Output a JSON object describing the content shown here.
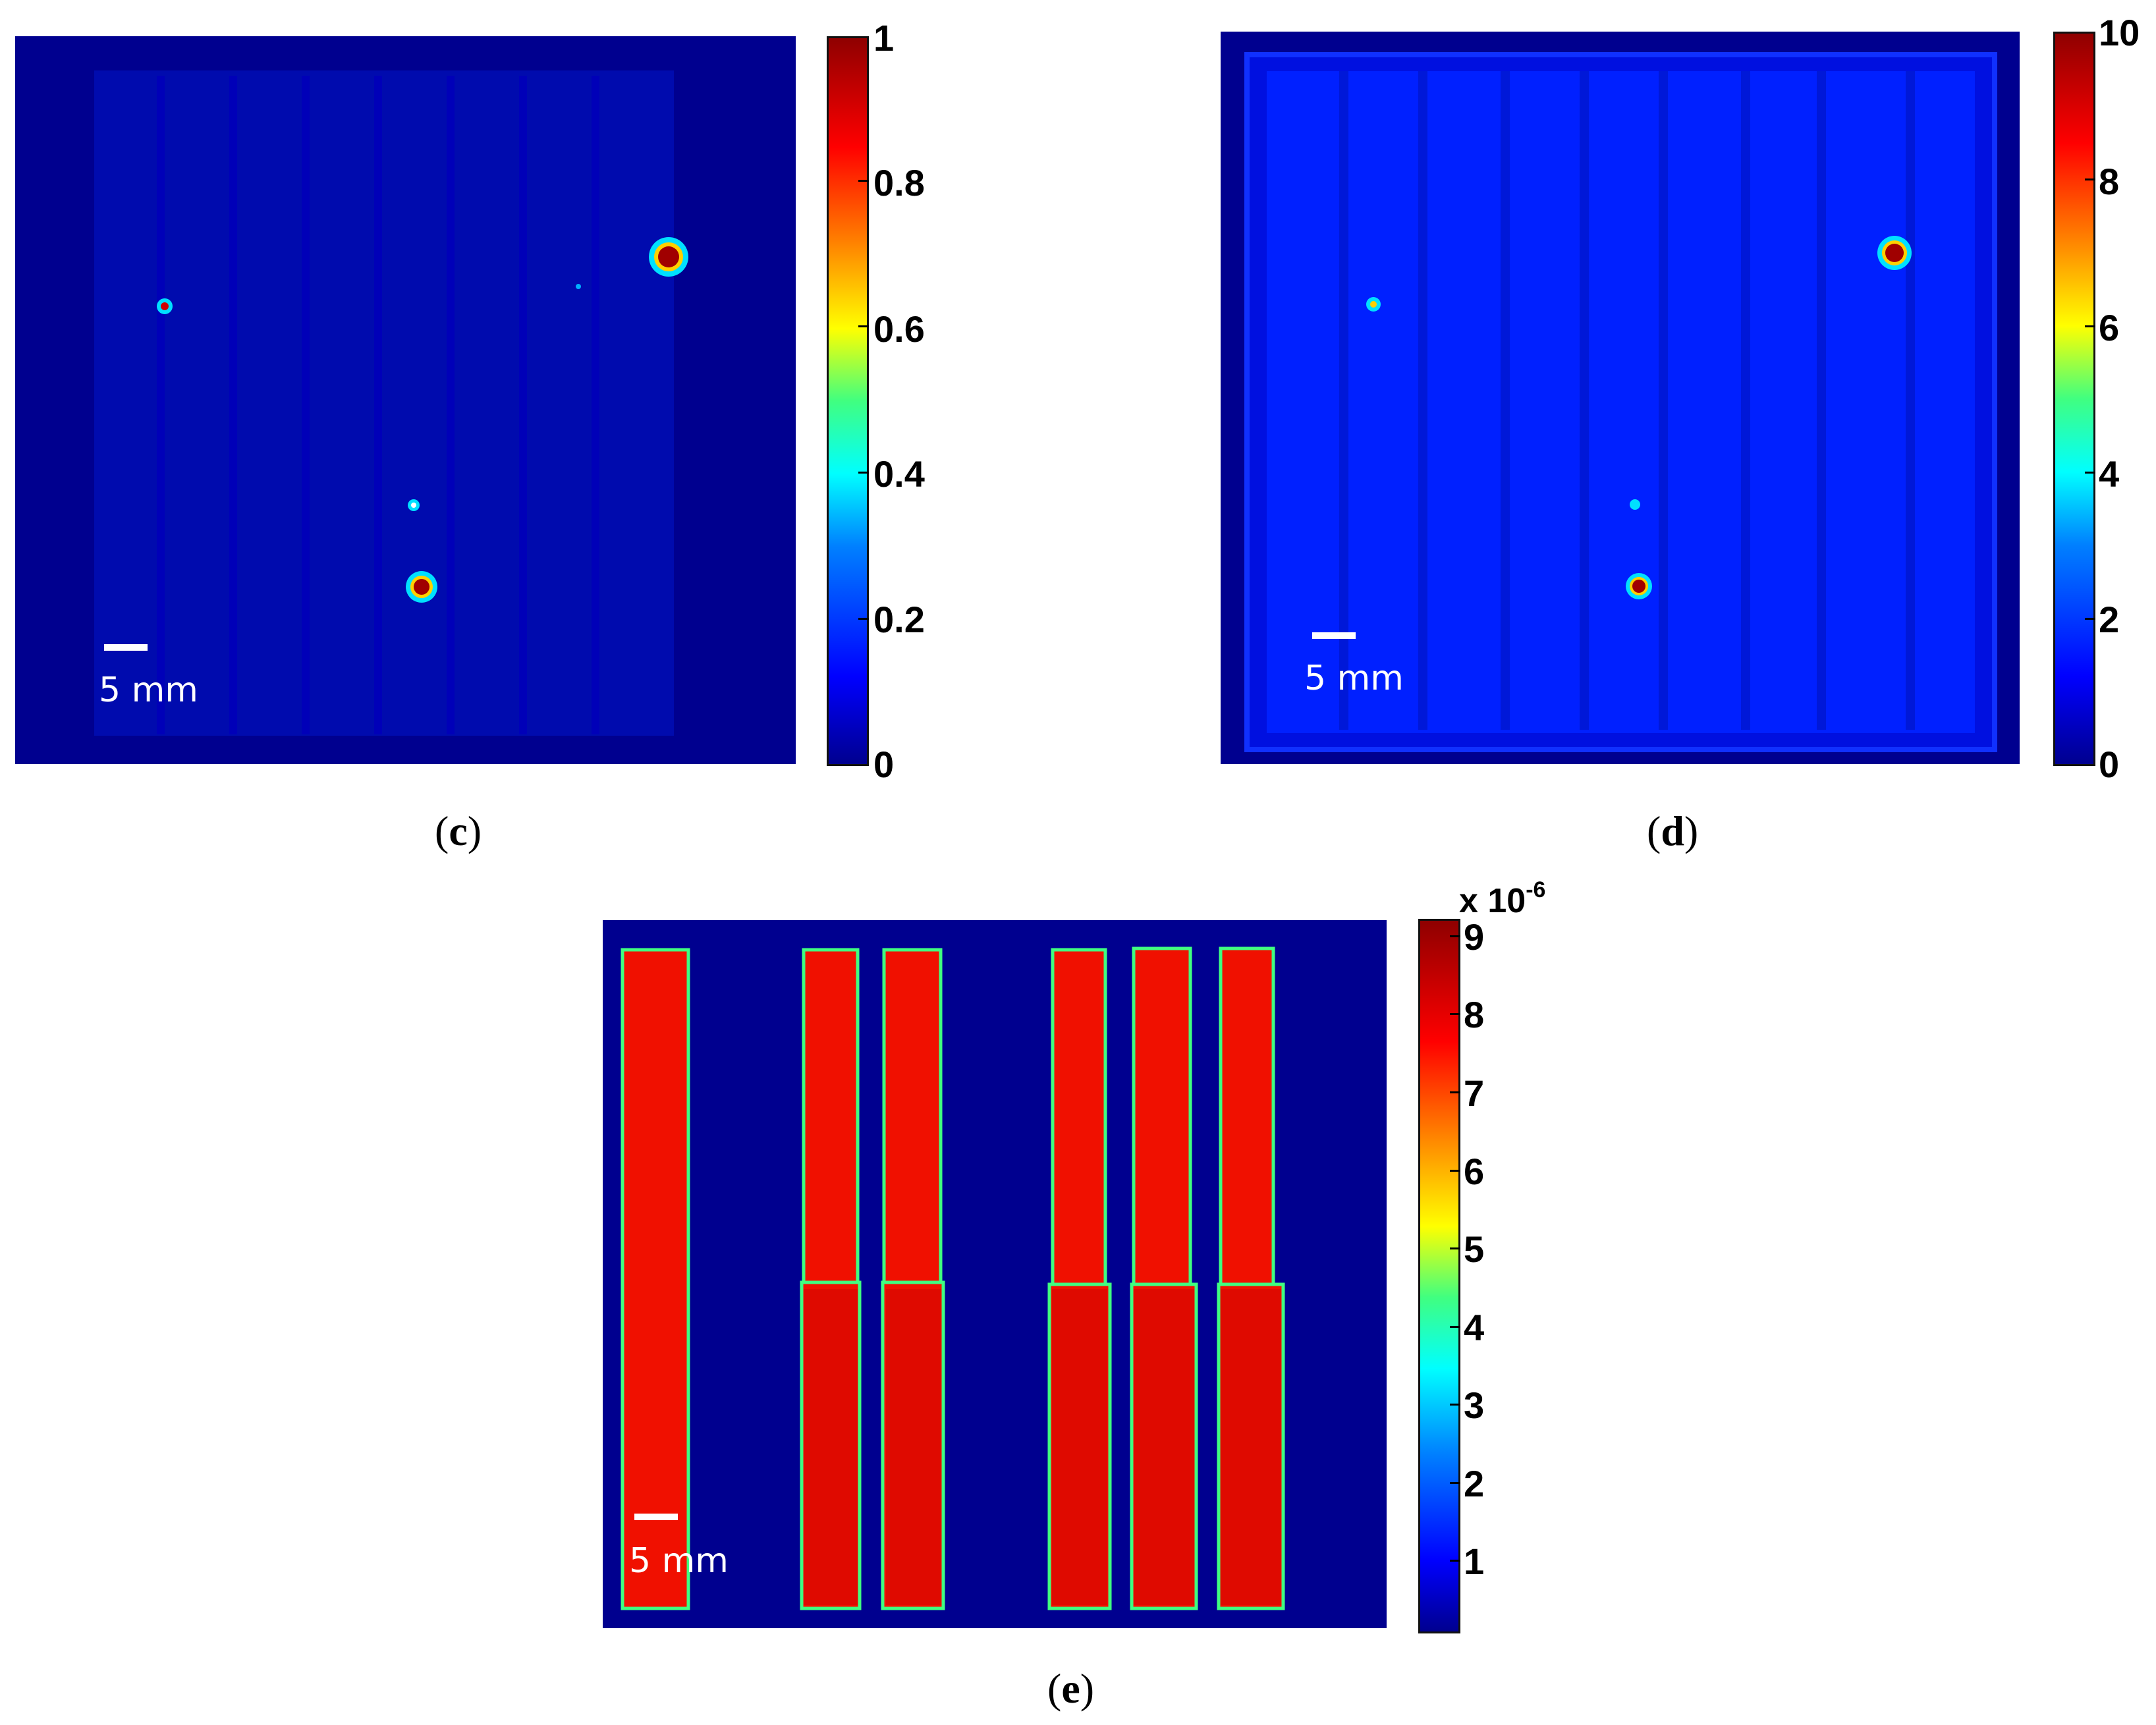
{
  "panels": {
    "c": {
      "label": "c",
      "scale_label": "5 mm",
      "colorbar_ticks": [
        "1",
        "0.8",
        "0.6",
        "0.4",
        "0.2",
        "0"
      ]
    },
    "d": {
      "label": "d",
      "scale_label": "5 mm",
      "colorbar_ticks": [
        "10",
        "8",
        "6",
        "4",
        "2",
        "0"
      ]
    },
    "e": {
      "label": "e",
      "scale_label": "5 mm",
      "colorbar_exponent_base": "x 10",
      "colorbar_exponent_power": "-6",
      "colorbar_ticks": [
        "9",
        "8",
        "7",
        "6",
        "5",
        "4",
        "3",
        "2",
        "1"
      ]
    }
  },
  "colors": {
    "background_blue": "#00008f",
    "colormap": "jet"
  }
}
